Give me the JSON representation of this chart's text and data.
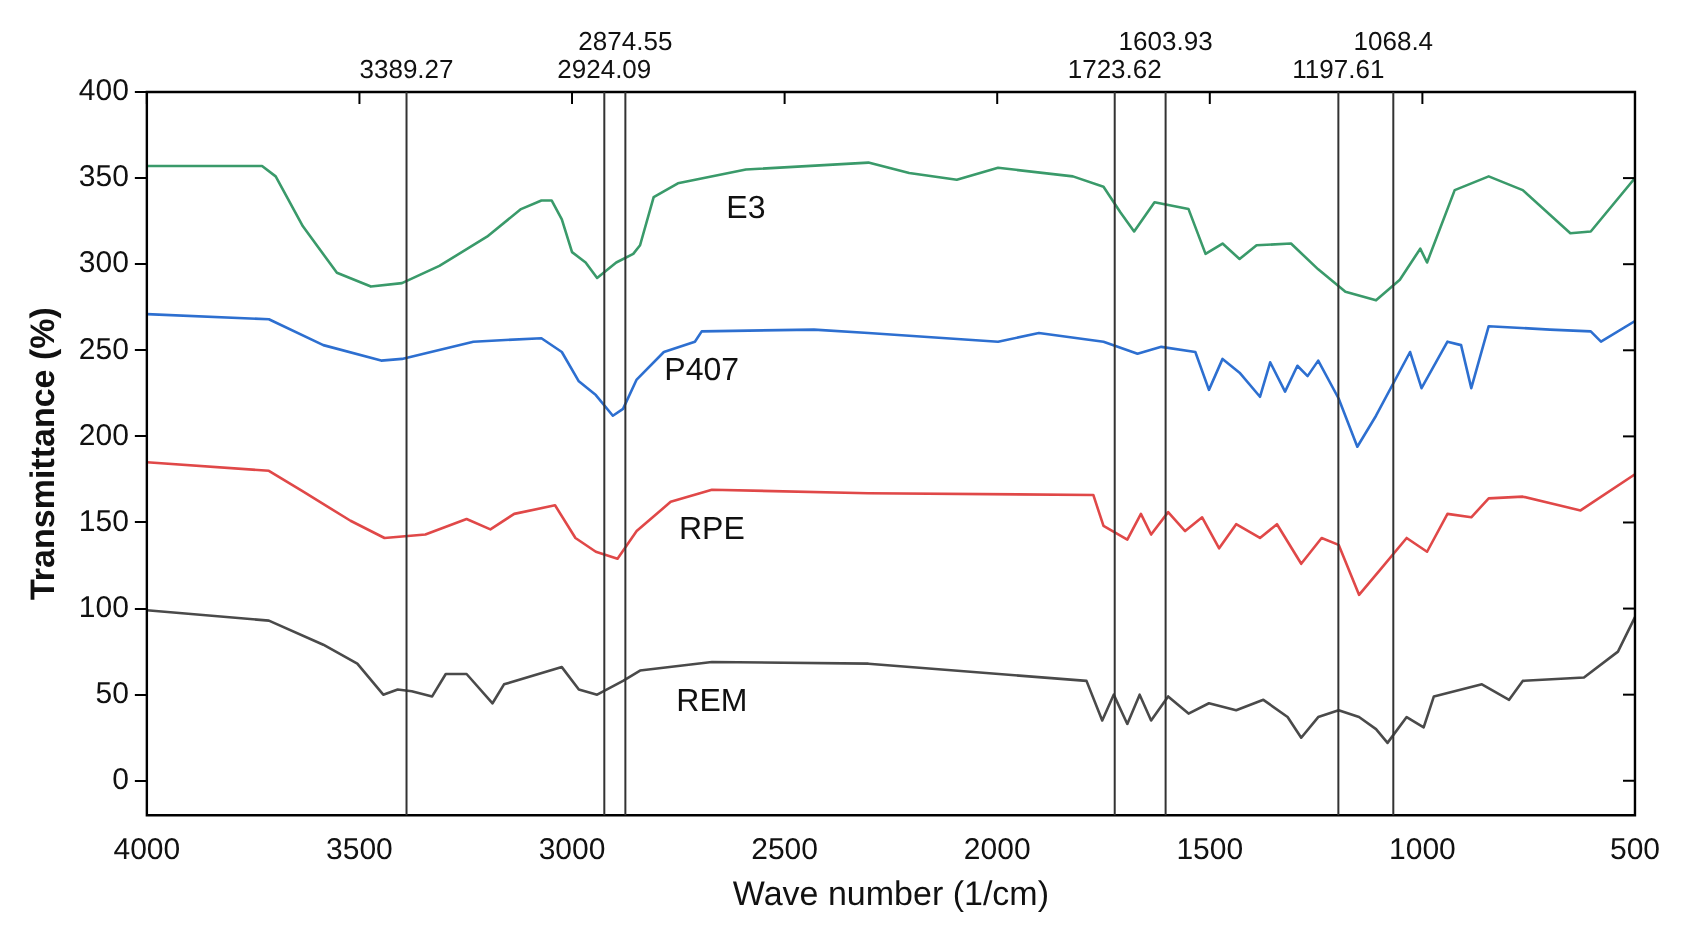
{
  "chart_data": {
    "type": "line",
    "xlabel": "Wave number (1/cm)",
    "ylabel": "Transmittance (%)",
    "xlim": [
      4000,
      500
    ],
    "xticks": [
      4000,
      3500,
      3000,
      2500,
      2000,
      1500,
      1000,
      500
    ],
    "ylim": [
      -20,
      400
    ],
    "yticks": [
      0,
      50,
      100,
      150,
      200,
      250,
      300,
      350,
      400
    ],
    "grid": false,
    "legend": false,
    "marker": "none",
    "line_style": "solid",
    "ref_lines": [
      {
        "axis": "x",
        "value": 3389.27,
        "label": "3389.27",
        "color": "#333333"
      },
      {
        "axis": "x",
        "value": 2924.09,
        "label": "2924.09",
        "color": "#333333"
      },
      {
        "axis": "x",
        "value": 2874.55,
        "label": "2874.55",
        "color": "#333333"
      },
      {
        "axis": "x",
        "value": 1723.62,
        "label": "1723.62",
        "color": "#333333"
      },
      {
        "axis": "x",
        "value": 1603.93,
        "label": "1603.93",
        "color": "#333333"
      },
      {
        "axis": "x",
        "value": 1197.61,
        "label": "1197.61",
        "color": "#333333"
      },
      {
        "axis": "x",
        "value": 1068.4,
        "label": "1068.4",
        "color": "#333333"
      }
    ],
    "series": [
      {
        "name": "E3",
        "color": "#3a9a6a",
        "x": [
          4000,
          3729,
          3697,
          3633,
          3553,
          3473,
          3400,
          3312,
          3200,
          3120,
          3072,
          3048,
          3024,
          3000,
          2968,
          2941,
          2896,
          2856,
          2840,
          2808,
          2751,
          2591,
          2303,
          2207,
          2095,
          1998,
          1822,
          1750,
          1710,
          1678,
          1630,
          1550,
          1510,
          1470,
          1430,
          1390,
          1309,
          1245,
          1181,
          1109,
          1053,
          1005,
          989,
          924,
          844,
          764,
          652,
          604,
          500
        ],
        "values": [
          357,
          357,
          351,
          322,
          295,
          287,
          289,
          299,
          316,
          332,
          337,
          337,
          326,
          307,
          301,
          292,
          301,
          306,
          311,
          339,
          347,
          355,
          359,
          353,
          349,
          356,
          351,
          345,
          330,
          319,
          336,
          332,
          306,
          312,
          303,
          311,
          312,
          297,
          284,
          279,
          291,
          309,
          301,
          343,
          351,
          343,
          318,
          319,
          350
        ]
      },
      {
        "name": "P407",
        "color": "#2d6fd0",
        "x": [
          4000,
          3713,
          3585,
          3449,
          3400,
          3232,
          3072,
          3024,
          2984,
          2944,
          2904,
          2880,
          2848,
          2784,
          2711,
          2695,
          2431,
          2303,
          1998,
          1902,
          1750,
          1670,
          1614,
          1534,
          1502,
          1470,
          1430,
          1382,
          1358,
          1323,
          1294,
          1270,
          1245,
          1197,
          1153,
          1109,
          1029,
          1002,
          941,
          909,
          885,
          844,
          700,
          604,
          580,
          500
        ],
        "values": [
          271,
          268,
          253,
          244,
          245,
          255,
          257,
          249,
          232,
          224,
          212,
          216,
          233,
          249,
          255,
          261,
          262,
          260,
          255,
          260,
          255,
          248,
          252,
          249,
          227,
          245,
          237,
          223,
          243,
          226,
          241,
          235,
          244,
          222,
          194,
          212,
          249,
          228,
          255,
          253,
          228,
          264,
          262,
          261,
          255,
          267
        ]
      },
      {
        "name": "RPE",
        "color": "#e04848",
        "x": [
          4000,
          3713,
          3633,
          3521,
          3441,
          3345,
          3248,
          3192,
          3136,
          3040,
          2992,
          2944,
          2893,
          2848,
          2768,
          2671,
          2303,
          1774,
          1750,
          1694,
          1662,
          1638,
          1598,
          1558,
          1518,
          1478,
          1438,
          1382,
          1342,
          1285,
          1237,
          1197,
          1149,
          1101,
          1037,
          989,
          941,
          885,
          844,
          764,
          628,
          500
        ],
        "values": [
          185,
          180,
          168,
          151,
          141,
          143,
          152,
          146,
          155,
          160,
          141,
          133,
          129,
          145,
          162,
          169,
          167,
          166,
          148,
          140,
          155,
          143,
          156,
          145,
          153,
          135,
          149,
          141,
          149,
          126,
          141,
          137,
          108,
          122,
          141,
          133,
          155,
          153,
          164,
          165,
          157,
          178
        ]
      },
      {
        "name": "REM",
        "color": "#4a4a4a",
        "x": [
          4000,
          3713,
          3585,
          3505,
          3444,
          3410,
          3377,
          3329,
          3297,
          3248,
          3187,
          3160,
          3024,
          2984,
          2941,
          2880,
          2840,
          2671,
          2303,
          1790,
          1753,
          1726,
          1694,
          1665,
          1638,
          1598,
          1550,
          1502,
          1438,
          1374,
          1317,
          1285,
          1245,
          1197,
          1149,
          1109,
          1082,
          1037,
          997,
          973,
          860,
          796,
          764,
          620,
          540,
          500
        ],
        "values": [
          99,
          93,
          79,
          68,
          50,
          53,
          52,
          49,
          62,
          62,
          45,
          56,
          66,
          53,
          50,
          58,
          64,
          69,
          68,
          58,
          35,
          50,
          33,
          50,
          35,
          49,
          39,
          45,
          41,
          47,
          37,
          25,
          37,
          41,
          37,
          30,
          22,
          37,
          31,
          49,
          56,
          47,
          58,
          60,
          75,
          95
        ]
      }
    ]
  }
}
